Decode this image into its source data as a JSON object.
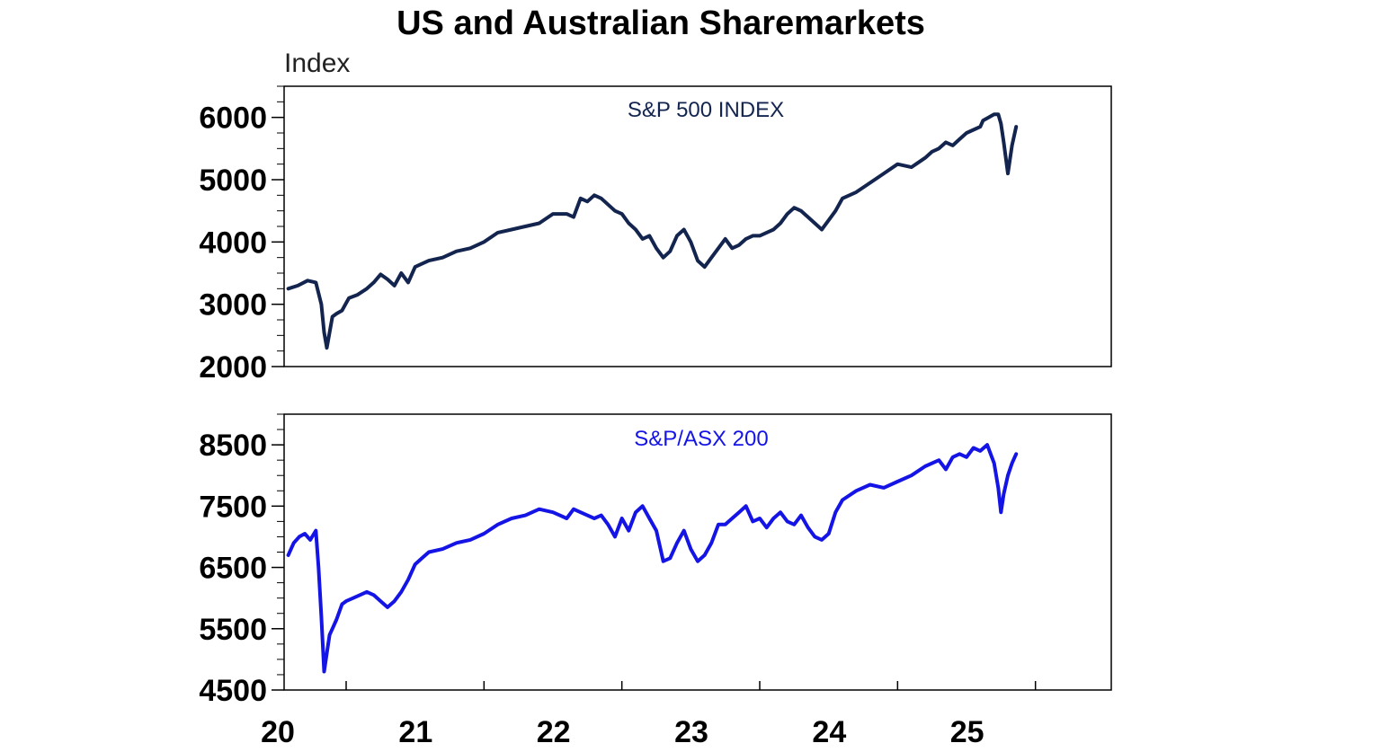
{
  "chart_data": {
    "title": "US and Australian Sharemarkets",
    "unit_label": "Index",
    "type": "line",
    "x_range": [
      2019.55,
      2025.55
    ],
    "x_tick_labels": [
      "20",
      "21",
      "22",
      "23",
      "24",
      "25"
    ],
    "x_tick_values": [
      2020,
      2021,
      2022,
      2023,
      2024,
      2025
    ],
    "grid": false,
    "panels": [
      {
        "series_name": "S&P 500 INDEX",
        "color": "#13244f",
        "ylim": [
          2000,
          6500
        ],
        "y_tick_labels": [
          "2000",
          "3000",
          "4000",
          "5000",
          "6000"
        ],
        "y_tick_values": [
          2000,
          3000,
          4000,
          5000,
          6000
        ],
        "x": [
          2019.58,
          2019.65,
          2019.72,
          2019.78,
          2019.82,
          2019.84,
          2019.86,
          2019.88,
          2019.9,
          2019.93,
          2019.97,
          2020.02,
          2020.08,
          2020.15,
          2020.2,
          2020.25,
          2020.3,
          2020.35,
          2020.4,
          2020.45,
          2020.5,
          2020.55,
          2020.6,
          2020.7,
          2020.8,
          2020.9,
          2021.0,
          2021.1,
          2021.2,
          2021.3,
          2021.4,
          2021.5,
          2021.6,
          2021.65,
          2021.7,
          2021.75,
          2021.8,
          2021.85,
          2021.9,
          2021.95,
          2022.0,
          2022.05,
          2022.1,
          2022.15,
          2022.2,
          2022.25,
          2022.3,
          2022.35,
          2022.4,
          2022.45,
          2022.5,
          2022.55,
          2022.6,
          2022.65,
          2022.7,
          2022.75,
          2022.8,
          2022.85,
          2022.9,
          2022.95,
          2023.0,
          2023.05,
          2023.1,
          2023.15,
          2023.2,
          2023.25,
          2023.3,
          2023.35,
          2023.4,
          2023.45,
          2023.5,
          2023.55,
          2023.6,
          2023.7,
          2023.8,
          2023.9,
          2024.0,
          2024.1,
          2024.2,
          2024.25,
          2024.3,
          2024.35,
          2024.4,
          2024.45,
          2024.5,
          2024.55,
          2024.6,
          2024.62,
          2024.66,
          2024.7,
          2024.73,
          2024.75,
          2024.77,
          2024.8,
          2024.83,
          2024.86
        ],
        "values": [
          3250,
          3300,
          3380,
          3350,
          3000,
          2550,
          2300,
          2550,
          2800,
          2850,
          2900,
          3100,
          3150,
          3250,
          3350,
          3480,
          3400,
          3300,
          3500,
          3350,
          3600,
          3650,
          3700,
          3750,
          3850,
          3900,
          4000,
          4150,
          4200,
          4250,
          4300,
          4450,
          4450,
          4400,
          4700,
          4650,
          4750,
          4700,
          4600,
          4500,
          4450,
          4300,
          4200,
          4050,
          4100,
          3900,
          3750,
          3850,
          4100,
          4200,
          4000,
          3700,
          3600,
          3750,
          3900,
          4050,
          3900,
          3950,
          4050,
          4100,
          4100,
          4150,
          4200,
          4300,
          4450,
          4550,
          4500,
          4400,
          4300,
          4200,
          4350,
          4500,
          4700,
          4800,
          4950,
          5100,
          5250,
          5200,
          5350,
          5450,
          5500,
          5600,
          5550,
          5650,
          5750,
          5800,
          5850,
          5950,
          6000,
          6050,
          6050,
          5900,
          5600,
          5100,
          5550,
          5850
        ]
      },
      {
        "series_name": "S&P/ASX 200",
        "color": "#1414e6",
        "ylim": [
          4500,
          9000
        ],
        "y_tick_labels": [
          "4500",
          "5500",
          "6500",
          "7500",
          "8500"
        ],
        "y_tick_values": [
          4500,
          5500,
          6500,
          7500,
          8500
        ],
        "x": [
          2019.58,
          2019.62,
          2019.66,
          2019.7,
          2019.74,
          2019.78,
          2019.8,
          2019.82,
          2019.84,
          2019.86,
          2019.88,
          2019.9,
          2019.93,
          2019.97,
          2020.0,
          2020.05,
          2020.1,
          2020.15,
          2020.2,
          2020.25,
          2020.3,
          2020.35,
          2020.4,
          2020.45,
          2020.5,
          2020.55,
          2020.6,
          2020.7,
          2020.8,
          2020.9,
          2021.0,
          2021.1,
          2021.2,
          2021.3,
          2021.4,
          2021.5,
          2021.55,
          2021.6,
          2021.65,
          2021.7,
          2021.75,
          2021.8,
          2021.85,
          2021.9,
          2021.95,
          2022.0,
          2022.05,
          2022.1,
          2022.15,
          2022.2,
          2022.25,
          2022.3,
          2022.35,
          2022.4,
          2022.45,
          2022.5,
          2022.55,
          2022.6,
          2022.65,
          2022.7,
          2022.75,
          2022.8,
          2022.85,
          2022.9,
          2022.95,
          2023.0,
          2023.05,
          2023.1,
          2023.15,
          2023.2,
          2023.25,
          2023.3,
          2023.35,
          2023.4,
          2023.45,
          2023.5,
          2023.55,
          2023.6,
          2023.7,
          2023.8,
          2023.9,
          2024.0,
          2024.1,
          2024.2,
          2024.3,
          2024.35,
          2024.4,
          2024.45,
          2024.5,
          2024.55,
          2024.6,
          2024.65,
          2024.7,
          2024.73,
          2024.75,
          2024.77,
          2024.8,
          2024.83,
          2024.86
        ],
        "values": [
          6700,
          6900,
          7000,
          7050,
          6950,
          7100,
          6500,
          5700,
          4800,
          5100,
          5400,
          5500,
          5650,
          5900,
          5950,
          6000,
          6050,
          6100,
          6050,
          5950,
          5850,
          5950,
          6100,
          6300,
          6550,
          6650,
          6750,
          6800,
          6900,
          6950,
          7050,
          7200,
          7300,
          7350,
          7450,
          7400,
          7350,
          7300,
          7450,
          7400,
          7350,
          7300,
          7350,
          7200,
          7000,
          7300,
          7100,
          7400,
          7500,
          7300,
          7100,
          6600,
          6650,
          6900,
          7100,
          6800,
          6600,
          6700,
          6900,
          7200,
          7200,
          7300,
          7400,
          7500,
          7250,
          7300,
          7150,
          7300,
          7400,
          7250,
          7200,
          7350,
          7150,
          7000,
          6950,
          7050,
          7400,
          7600,
          7750,
          7850,
          7800,
          7900,
          8000,
          8150,
          8250,
          8100,
          8300,
          8350,
          8300,
          8450,
          8400,
          8500,
          8200,
          7800,
          7400,
          7700,
          8000,
          8200,
          8350
        ]
      }
    ]
  }
}
